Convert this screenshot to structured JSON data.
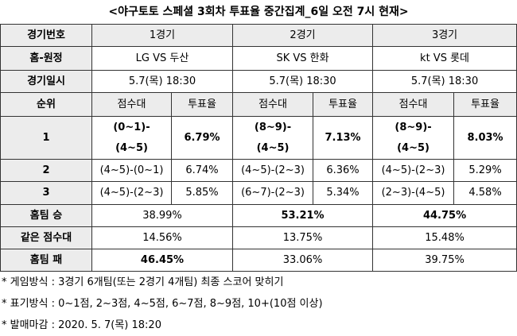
{
  "title": "<야구토토 스페셜 3회차 투표율 중간집계_6일 오전 7시 현재>",
  "table": {
    "games": {
      "label": "경기번호",
      "values": [
        "1경기",
        "2경기",
        "3경기"
      ]
    },
    "matchups": {
      "label": "홈-원정",
      "values": [
        "LG VS 두산",
        "SK VS 한화",
        "kt VS 롯데"
      ]
    },
    "dates": {
      "label": "경기일시",
      "values": [
        "5.7(목) 18:30",
        "5.7(목) 18:30",
        "5.7(목) 18:30"
      ]
    },
    "rank_header": {
      "label": "순위",
      "score": "점수대",
      "rate": "투표율"
    },
    "ranks": [
      {
        "rank": "1",
        "games": [
          {
            "score": [
              "(0~1)-",
              "(4~5)"
            ],
            "rate": "6.79%"
          },
          {
            "score": [
              "(8~9)-",
              "(4~5)"
            ],
            "rate": "7.13%"
          },
          {
            "score": [
              "(8~9)-",
              "(4~5)"
            ],
            "rate": "8.03%"
          }
        ]
      },
      {
        "rank": "2",
        "games": [
          {
            "score": [
              "(4~5)-(0~1)"
            ],
            "rate": "6.74%"
          },
          {
            "score": [
              "(4~5)-(2~3)"
            ],
            "rate": "6.36%"
          },
          {
            "score": [
              "(4~5)-(2~3)"
            ],
            "rate": "5.29%"
          }
        ]
      },
      {
        "rank": "3",
        "games": [
          {
            "score": [
              "(4~5)-(2~3)"
            ],
            "rate": "5.85%"
          },
          {
            "score": [
              "(6~7)-(2~3)"
            ],
            "rate": "5.34%"
          },
          {
            "score": [
              "(2~3)-(4~5)"
            ],
            "rate": "4.58%"
          }
        ]
      }
    ],
    "outcomes": [
      {
        "label": "홈팀 승",
        "values": [
          "38.99%",
          "53.21%",
          "44.75%"
        ]
      },
      {
        "label": "같은 점수대",
        "values": [
          "14.56%",
          "13.75%",
          "15.48%"
        ]
      },
      {
        "label": "홈팀 패",
        "values": [
          "46.45%",
          "33.06%",
          "39.75%"
        ]
      }
    ]
  },
  "notes": [
    "* 게임방식 : 3경기 6개팀(또는 2경기 4개팀) 최종 스코어 맞히기",
    "* 표기방식 : 0~1점, 2~3점, 4~5점, 6~7점, 8~9점, 10+(10점 이상)",
    "* 발매마감 : 2020. 5. 7(목) 18:20"
  ]
}
